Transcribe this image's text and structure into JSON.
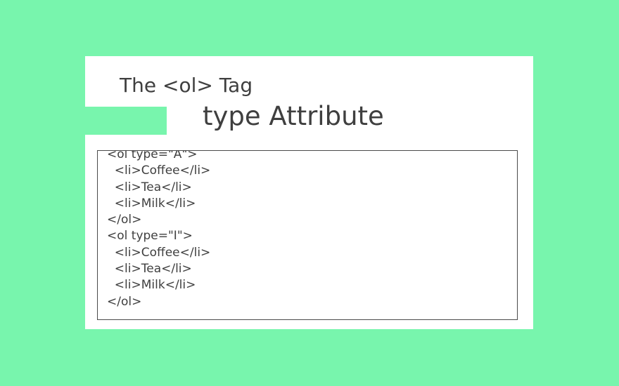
{
  "header": {
    "title": "The <ol> Tag",
    "subtitle": "type Attribute"
  },
  "code": {
    "lines": [
      "<ol type=\"A\">",
      "  <li>Coffee</li>",
      "  <li>Tea</li>",
      "  <li>Milk</li>",
      "</ol>",
      "<ol type=\"I\">",
      "  <li>Coffee</li>",
      "  <li>Tea</li>",
      "  <li>Milk</li>",
      "</ol>"
    ]
  },
  "colors": {
    "background": "#78f5ad",
    "card": "#ffffff",
    "text": "#3f3f3f",
    "border": "#4a4a4a"
  }
}
